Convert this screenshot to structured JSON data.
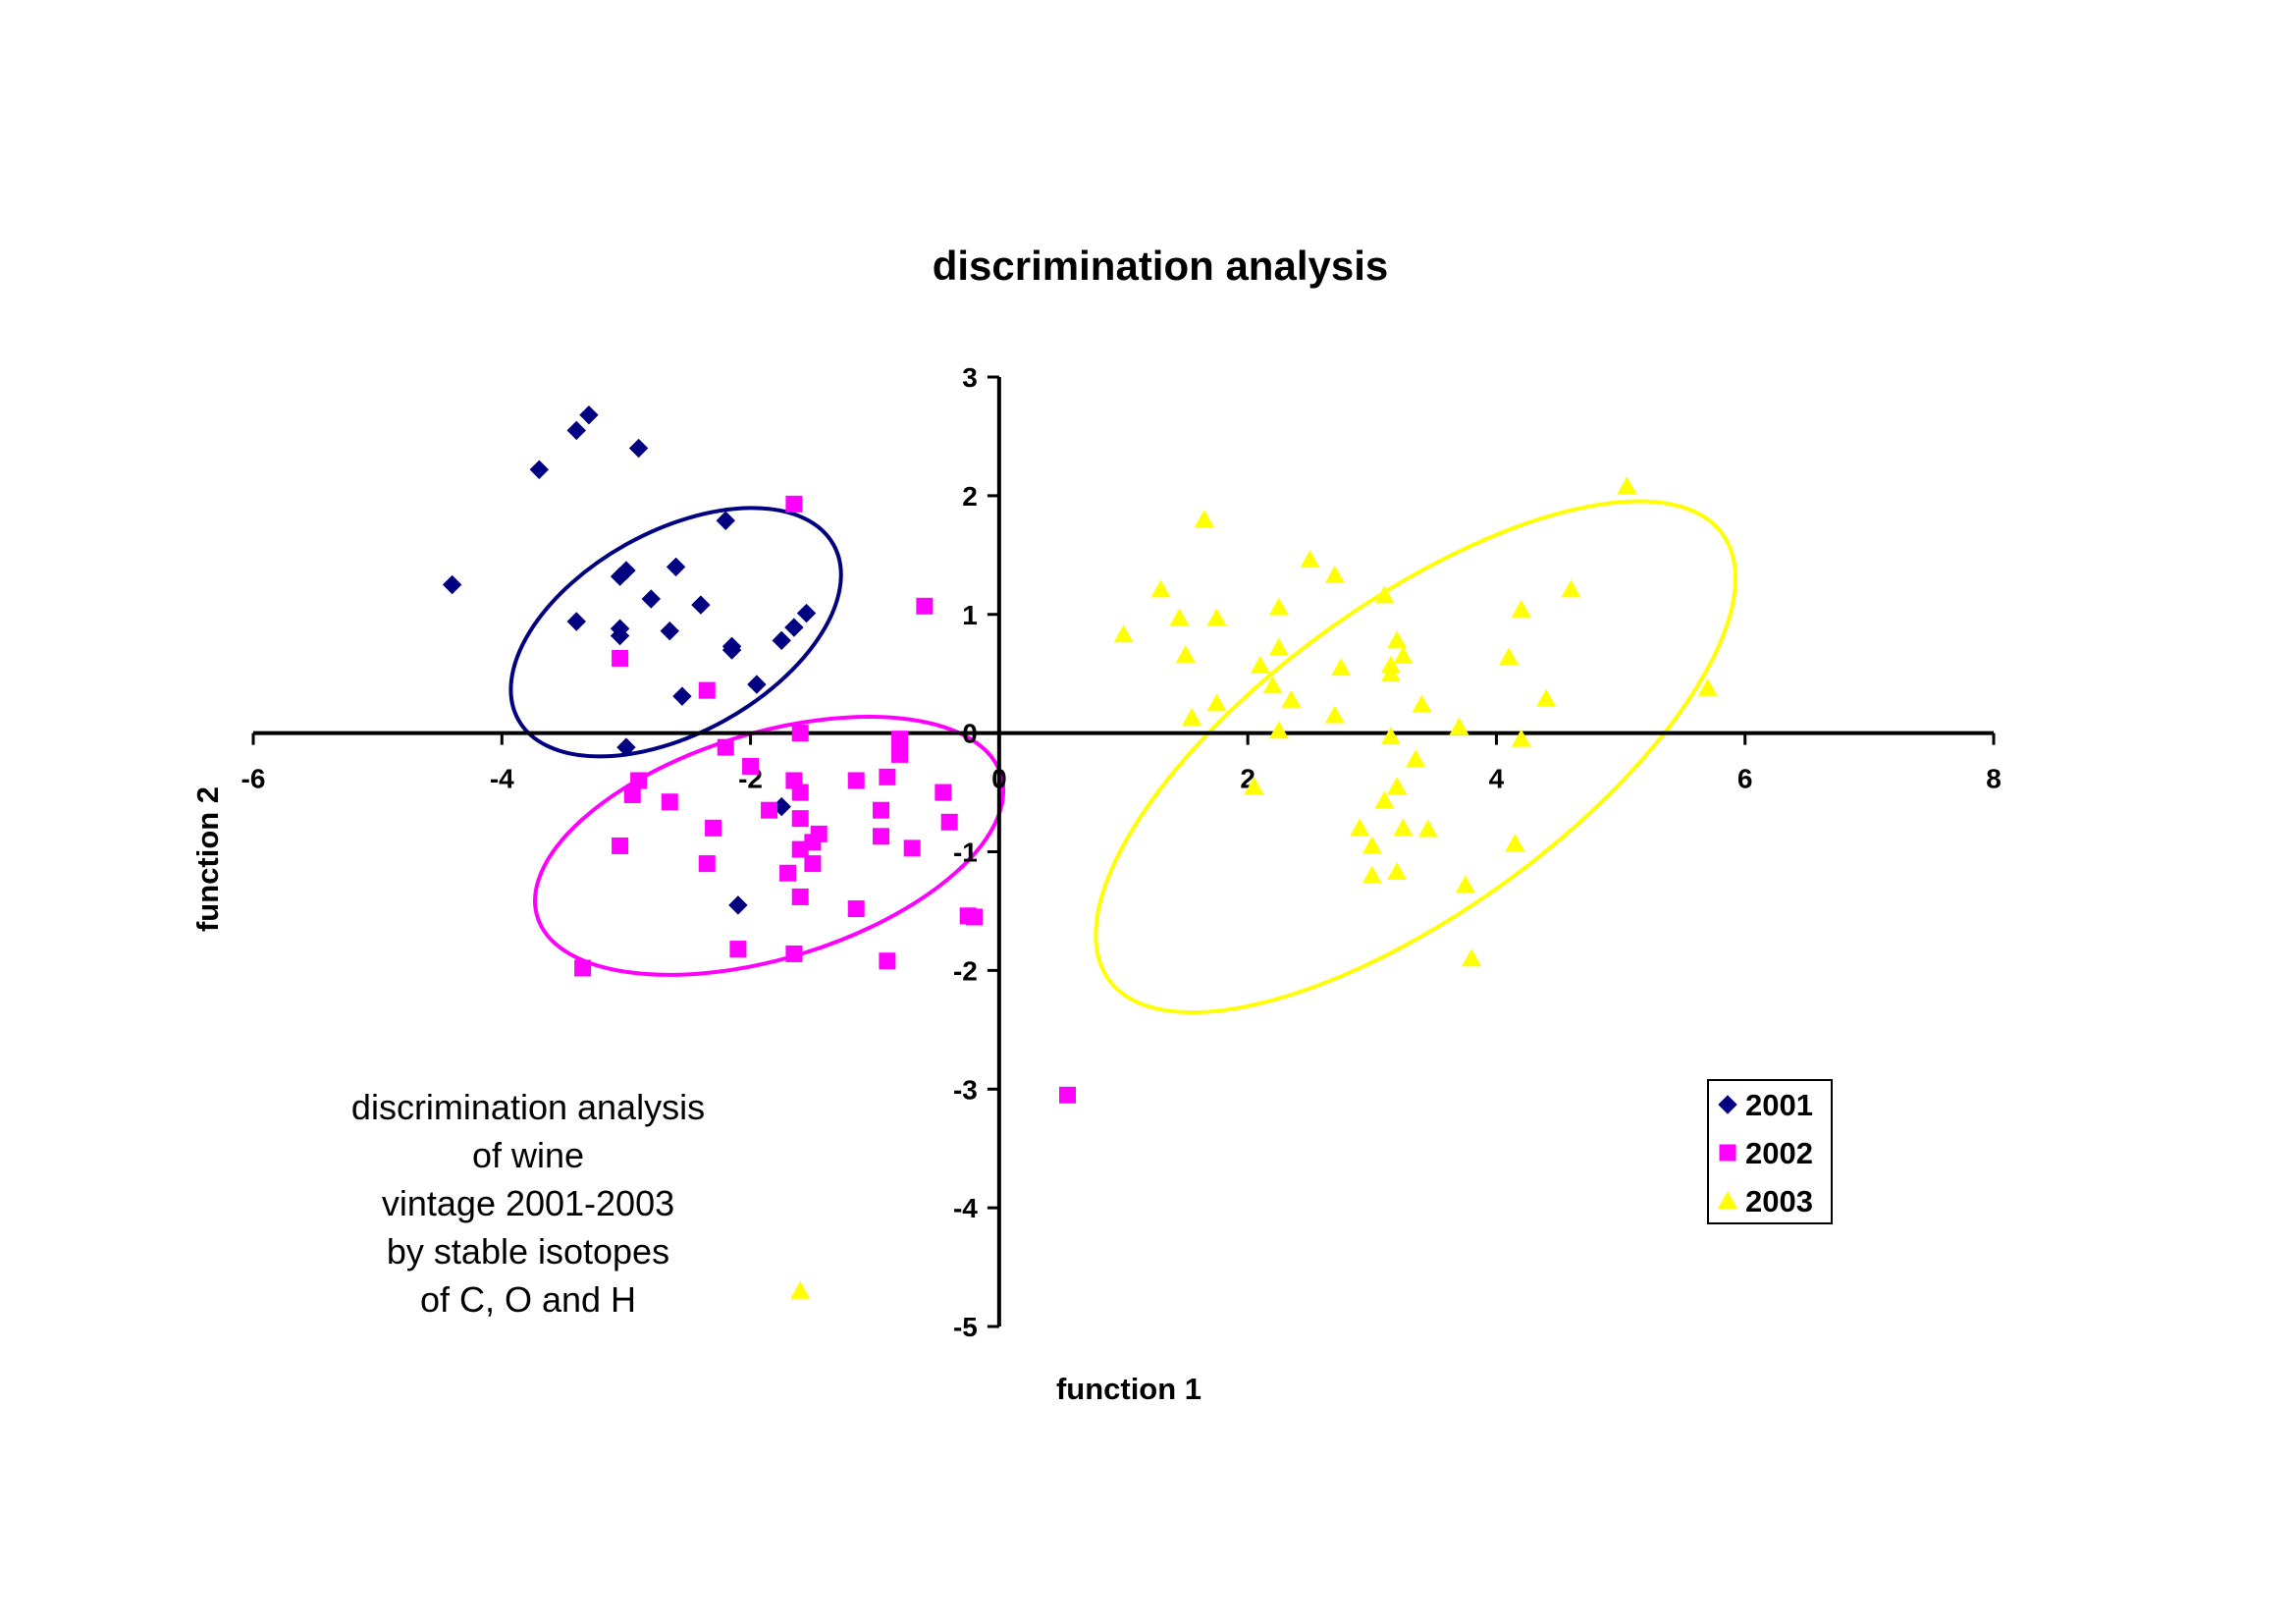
{
  "chart_data": {
    "type": "scatter",
    "title": "discrimination analysis",
    "xlabel": "function 1",
    "ylabel": "function 2",
    "xlim": [
      -6,
      8
    ],
    "ylim": [
      -5,
      3
    ],
    "xticks": [
      "-6",
      "-4",
      "-2",
      "0",
      "2",
      "4",
      "6",
      "8"
    ],
    "yticks": [
      "3",
      "2",
      "1",
      "0",
      "-1",
      "-2",
      "-3",
      "-4",
      "-5"
    ],
    "xtick_values": [
      -6,
      -4,
      -2,
      0,
      2,
      4,
      6,
      8
    ],
    "ytick_values": [
      3,
      2,
      1,
      0,
      -1,
      -2,
      -3,
      -4,
      -5
    ],
    "grid": false,
    "legend_position": "lower-right",
    "annotation": [
      "discrimination analysis",
      "of wine",
      "vintage 2001-2003",
      "by stable isotopes",
      "of C, O and H"
    ],
    "series": [
      {
        "name": "2001",
        "marker": "diamond",
        "color": "#000080",
        "points": [
          [
            -4.4,
            1.25
          ],
          [
            -3.7,
            2.22
          ],
          [
            -3.4,
            2.55
          ],
          [
            -3.3,
            2.68
          ],
          [
            -2.9,
            2.4
          ],
          [
            -3.05,
            1.32
          ],
          [
            -3.0,
            1.37
          ],
          [
            -2.8,
            1.13
          ],
          [
            -2.6,
            1.4
          ],
          [
            -2.4,
            1.08
          ],
          [
            -2.2,
            1.79
          ],
          [
            -3.4,
            0.94
          ],
          [
            -3.05,
            0.88
          ],
          [
            -3.05,
            0.82
          ],
          [
            -2.65,
            0.86
          ],
          [
            -2.15,
            0.73
          ],
          [
            -2.15,
            0.7
          ],
          [
            -1.75,
            0.78
          ],
          [
            -1.65,
            0.89
          ],
          [
            -1.55,
            1.01
          ],
          [
            -1.95,
            0.41
          ],
          [
            -2.55,
            0.31
          ],
          [
            -3.0,
            -0.12
          ],
          [
            -1.75,
            -0.62
          ],
          [
            -2.1,
            -1.45
          ]
        ]
      },
      {
        "name": "2002",
        "marker": "square",
        "color": "#ff00ff",
        "points": [
          [
            -1.65,
            1.93
          ],
          [
            -0.6,
            1.07
          ],
          [
            -3.05,
            0.63
          ],
          [
            -2.35,
            0.36
          ],
          [
            -1.6,
            0.0
          ],
          [
            -2.2,
            -0.12
          ],
          [
            -2.0,
            -0.28
          ],
          [
            -0.8,
            -0.05
          ],
          [
            -0.8,
            -0.18
          ],
          [
            -1.15,
            -0.4
          ],
          [
            -0.9,
            -0.37
          ],
          [
            -2.9,
            -0.4
          ],
          [
            -1.65,
            -0.4
          ],
          [
            -1.6,
            -0.5
          ],
          [
            -0.45,
            -0.5
          ],
          [
            -2.95,
            -0.52
          ],
          [
            -2.65,
            -0.58
          ],
          [
            -1.85,
            -0.65
          ],
          [
            -1.6,
            -0.72
          ],
          [
            -0.95,
            -0.65
          ],
          [
            -0.4,
            -0.75
          ],
          [
            -2.3,
            -0.8
          ],
          [
            -1.45,
            -0.85
          ],
          [
            -1.5,
            -0.92
          ],
          [
            -0.95,
            -0.87
          ],
          [
            -3.05,
            -0.95
          ],
          [
            -1.6,
            -0.98
          ],
          [
            -0.7,
            -0.97
          ],
          [
            -2.35,
            -1.1
          ],
          [
            -1.5,
            -1.1
          ],
          [
            -1.7,
            -1.18
          ],
          [
            -1.6,
            -1.38
          ],
          [
            -1.15,
            -1.48
          ],
          [
            -0.25,
            -1.54
          ],
          [
            -0.2,
            -1.55
          ],
          [
            -2.1,
            -1.82
          ],
          [
            -1.65,
            -1.86
          ],
          [
            -0.9,
            -1.92
          ],
          [
            -3.35,
            -1.98
          ],
          [
            0.55,
            -3.05
          ]
        ]
      },
      {
        "name": "2003",
        "marker": "triangle",
        "color": "#ffff00",
        "points": [
          [
            5.05,
            2.08
          ],
          [
            1.65,
            1.8
          ],
          [
            2.5,
            1.46
          ],
          [
            2.7,
            1.33
          ],
          [
            1.3,
            1.21
          ],
          [
            4.6,
            1.21
          ],
          [
            3.1,
            1.16
          ],
          [
            2.25,
            1.06
          ],
          [
            4.2,
            1.04
          ],
          [
            1.45,
            0.97
          ],
          [
            1.75,
            0.97
          ],
          [
            1.0,
            0.83
          ],
          [
            3.2,
            0.78
          ],
          [
            2.25,
            0.72
          ],
          [
            1.5,
            0.66
          ],
          [
            3.25,
            0.65
          ],
          [
            4.1,
            0.64
          ],
          [
            2.1,
            0.57
          ],
          [
            2.75,
            0.55
          ],
          [
            3.15,
            0.57
          ],
          [
            3.15,
            0.5
          ],
          [
            2.2,
            0.4
          ],
          [
            5.7,
            0.38
          ],
          [
            4.4,
            0.29
          ],
          [
            2.35,
            0.28
          ],
          [
            1.75,
            0.25
          ],
          [
            3.4,
            0.24
          ],
          [
            1.55,
            0.13
          ],
          [
            2.7,
            0.15
          ],
          [
            3.7,
            0.05
          ],
          [
            2.25,
            0.02
          ],
          [
            3.15,
            -0.03
          ],
          [
            4.2,
            -0.05
          ],
          [
            3.35,
            -0.22
          ],
          [
            2.05,
            -0.45
          ],
          [
            3.2,
            -0.45
          ],
          [
            3.1,
            -0.57
          ],
          [
            2.9,
            -0.8
          ],
          [
            3.25,
            -0.8
          ],
          [
            3.45,
            -0.81
          ],
          [
            3.0,
            -0.95
          ],
          [
            4.15,
            -0.93
          ],
          [
            3.0,
            -1.2
          ],
          [
            3.2,
            -1.17
          ],
          [
            3.75,
            -1.28
          ],
          [
            3.8,
            -1.9
          ],
          [
            -1.6,
            -4.7
          ]
        ]
      }
    ],
    "ellipses": [
      {
        "series": "2001",
        "color": "#000080",
        "center": [
          -2.6,
          0.85
        ],
        "rx": 1.45,
        "ry": 0.85,
        "angle_deg": -29
      },
      {
        "series": "2002",
        "color": "#ff00ff",
        "center": [
          -1.85,
          -0.95
        ],
        "rx": 1.95,
        "ry": 0.95,
        "angle_deg": -17
      },
      {
        "series": "2003",
        "color": "#ffff00",
        "center": [
          3.35,
          -0.2
        ],
        "rx": 3.05,
        "ry": 1.3,
        "angle_deg": -36
      }
    ]
  }
}
